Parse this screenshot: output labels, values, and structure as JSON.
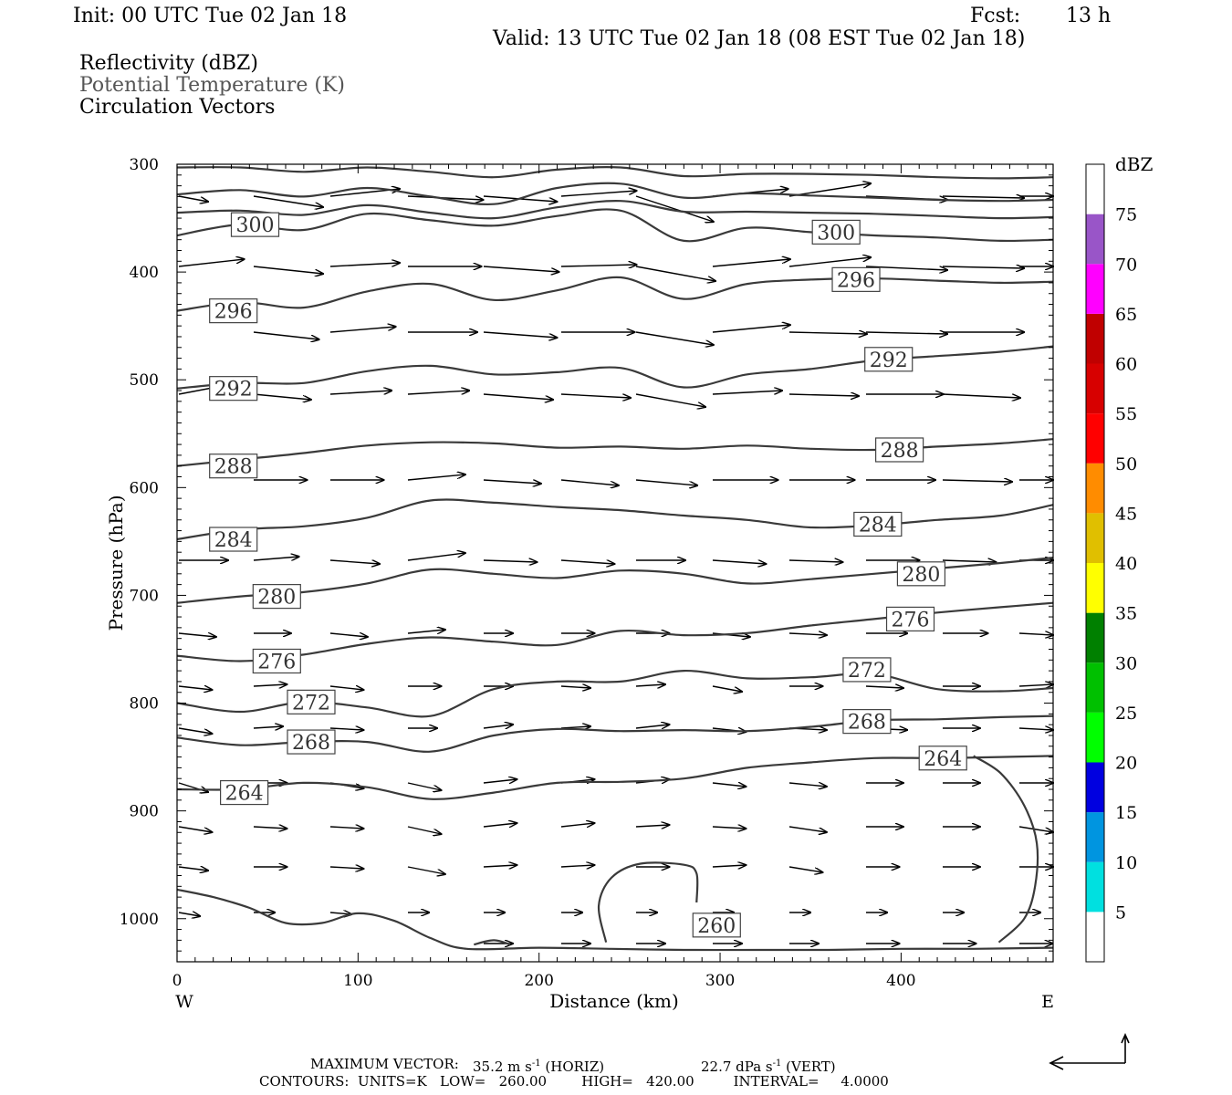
{
  "header": {
    "init": "Init: 00 UTC Tue 02 Jan 18",
    "fcst_label": "Fcst:",
    "fcst_value": "13 h",
    "valid": "Valid: 13 UTC Tue 02 Jan 18 (08 EST Tue 02 Jan 18)",
    "field1": "Reflectivity (dBZ)",
    "field2": "Potential Temperature (K)",
    "field3": "Circulation Vectors"
  },
  "footer": {
    "max_vector_label": "MAXIMUM VECTOR:",
    "max_vector_horiz": "35.2 m s",
    "horiz_sup": "-1",
    "horiz_tag": "(HORIZ)",
    "max_vector_vert": "22.7 dPa s",
    "vert_sup": "-1",
    "vert_tag": "(VERT)",
    "contours": "CONTOURS:  UNITS=K   LOW=   260.00        HIGH=   420.00         INTERVAL=     4.0000"
  },
  "chart_data": {
    "type": "line",
    "title": "",
    "xlabel": "Distance (km)",
    "ylabel": "Pressure (hPa)",
    "xlim": [
      0,
      484
    ],
    "ylim": [
      1040,
      300
    ],
    "x_ticks": [
      0,
      100,
      200,
      300,
      400
    ],
    "y_ticks": [
      300,
      400,
      500,
      600,
      700,
      800,
      900,
      1000
    ],
    "x_end_labels": [
      "W",
      "E"
    ],
    "colorbar": {
      "title": "dBZ",
      "ticks": [
        5,
        10,
        15,
        20,
        25,
        30,
        35,
        40,
        45,
        50,
        55,
        60,
        65,
        70,
        75
      ],
      "colors": [
        "#ffffff",
        "#00e0e0",
        "#0095e0",
        "#0000e0",
        "#00ff00",
        "#00c000",
        "#008000",
        "#ffff00",
        "#e0bf00",
        "#ff8c00",
        "#ff0000",
        "#d70000",
        "#c00000",
        "#ff00ff",
        "#9955c8",
        "#ffffff"
      ]
    },
    "contour_labels": [
      {
        "value": "300",
        "x": 30,
        "p": 356
      },
      {
        "value": "300",
        "x": 351,
        "p": 363
      },
      {
        "value": "296",
        "x": 18,
        "p": 436
      },
      {
        "value": "296",
        "x": 362,
        "p": 407
      },
      {
        "value": "292",
        "x": 18,
        "p": 508
      },
      {
        "value": "292",
        "x": 380,
        "p": 481
      },
      {
        "value": "288",
        "x": 18,
        "p": 580
      },
      {
        "value": "288",
        "x": 386,
        "p": 565
      },
      {
        "value": "284",
        "x": 18,
        "p": 648
      },
      {
        "value": "284",
        "x": 374,
        "p": 634
      },
      {
        "value": "280",
        "x": 42,
        "p": 701
      },
      {
        "value": "280",
        "x": 398,
        "p": 680
      },
      {
        "value": "276",
        "x": 42,
        "p": 761
      },
      {
        "value": "276",
        "x": 392,
        "p": 722
      },
      {
        "value": "272",
        "x": 61,
        "p": 799
      },
      {
        "value": "272",
        "x": 368,
        "p": 769
      },
      {
        "value": "268",
        "x": 61,
        "p": 836
      },
      {
        "value": "268",
        "x": 368,
        "p": 817
      },
      {
        "value": "264",
        "x": 24,
        "p": 883
      },
      {
        "value": "264",
        "x": 410,
        "p": 851
      },
      {
        "value": "260",
        "x": 285,
        "p": 1006
      }
    ],
    "series": [
      {
        "name": "",
        "level": 300,
        "x": [
          0,
          35,
          70,
          105,
          140,
          175,
          210,
          245,
          280,
          315,
          350,
          385,
          420,
          455,
          484
        ],
        "p": [
          303,
          303,
          307,
          303,
          307,
          312,
          305,
          303,
          311,
          309,
          309,
          310,
          312,
          313,
          312
        ]
      },
      {
        "name": "",
        "level": 300,
        "x": [
          0,
          35,
          70,
          105,
          140,
          175,
          210,
          245,
          280,
          315,
          350,
          385,
          420,
          455,
          484
        ],
        "p": [
          328,
          324,
          330,
          322,
          330,
          337,
          322,
          318,
          331,
          327,
          329,
          331,
          333,
          334,
          333
        ]
      },
      {
        "name": "",
        "level": 300,
        "x": [
          0,
          35,
          70,
          105,
          140,
          175,
          210,
          245,
          280,
          315,
          350,
          385,
          420,
          455,
          484
        ],
        "p": [
          345,
          343,
          347,
          338,
          345,
          350,
          340,
          334,
          344,
          344,
          345,
          346,
          348,
          350,
          349
        ]
      },
      {
        "name": "",
        "level": 300,
        "x": [
          0,
          35,
          70,
          105,
          140,
          175,
          210,
          245,
          280,
          315,
          350,
          385,
          420,
          455,
          484
        ],
        "p": [
          366,
          356,
          361,
          346,
          352,
          357,
          348,
          343,
          371,
          359,
          363,
          366,
          368,
          371,
          370
        ]
      },
      {
        "name": "",
        "level": 296,
        "x": [
          0,
          35,
          70,
          105,
          140,
          175,
          210,
          245,
          280,
          315,
          350,
          385,
          420,
          455,
          484
        ],
        "p": [
          436,
          428,
          433,
          418,
          411,
          426,
          417,
          405,
          425,
          411,
          407,
          406,
          408,
          410,
          409
        ]
      },
      {
        "name": "",
        "level": 292,
        "x": [
          0,
          35,
          70,
          105,
          140,
          175,
          210,
          245,
          280,
          315,
          350,
          385,
          420,
          455,
          484
        ],
        "p": [
          508,
          503,
          503,
          492,
          487,
          495,
          493,
          489,
          507,
          495,
          490,
          482,
          478,
          474,
          469
        ]
      },
      {
        "name": "",
        "level": 288,
        "x": [
          0,
          35,
          70,
          105,
          140,
          175,
          210,
          245,
          280,
          315,
          350,
          385,
          420,
          455,
          484
        ],
        "p": [
          580,
          574,
          568,
          561,
          558,
          559,
          563,
          562,
          564,
          561,
          564,
          565,
          562,
          559,
          555
        ]
      },
      {
        "name": "",
        "level": 284,
        "x": [
          0,
          35,
          70,
          105,
          140,
          175,
          210,
          245,
          280,
          315,
          350,
          385,
          420,
          455,
          484
        ],
        "p": [
          648,
          639,
          636,
          628,
          612,
          614,
          618,
          621,
          626,
          630,
          637,
          635,
          630,
          626,
          616
        ]
      },
      {
        "name": "",
        "level": 280,
        "x": [
          0,
          35,
          70,
          105,
          140,
          175,
          210,
          245,
          280,
          315,
          350,
          385,
          420,
          455,
          484
        ],
        "p": [
          707,
          701,
          697,
          689,
          676,
          680,
          684,
          677,
          680,
          689,
          685,
          680,
          675,
          670,
          665
        ]
      },
      {
        "name": "",
        "level": 276,
        "x": [
          0,
          35,
          70,
          105,
          140,
          175,
          210,
          245,
          280,
          315,
          350,
          385,
          420,
          455,
          484
        ],
        "p": [
          756,
          761,
          755,
          745,
          739,
          743,
          746,
          733,
          737,
          735,
          728,
          722,
          716,
          711,
          707
        ]
      },
      {
        "name": "",
        "level": 272,
        "x": [
          0,
          35,
          70,
          105,
          140,
          175,
          210,
          245,
          280,
          315,
          350,
          385,
          420,
          455,
          484
        ],
        "p": [
          800,
          808,
          799,
          804,
          812,
          787,
          780,
          780,
          770,
          777,
          776,
          773,
          787,
          789,
          786
        ]
      },
      {
        "name": "",
        "level": 268,
        "x": [
          0,
          35,
          70,
          105,
          140,
          175,
          210,
          245,
          280,
          315,
          350,
          385,
          420,
          455,
          484
        ],
        "p": [
          832,
          839,
          836,
          836,
          845,
          830,
          824,
          826,
          825,
          826,
          822,
          816,
          815,
          813,
          812
        ]
      },
      {
        "name": "",
        "level": 264,
        "x": [
          0,
          35,
          70,
          105,
          140,
          175,
          210,
          245,
          280,
          315,
          350,
          385,
          420,
          455,
          484
        ],
        "p": [
          880,
          880,
          874,
          878,
          889,
          883,
          874,
          873,
          870,
          860,
          855,
          851,
          851,
          850,
          849
        ]
      },
      {
        "name": "",
        "level": 264,
        "x": [
          440,
          455,
          468,
          475,
          474,
          468,
          454
        ],
        "p": [
          849,
          865,
          895,
          930,
          970,
          1000,
          1022
        ]
      },
      {
        "name": "",
        "level": 260,
        "x": [
          0,
          20,
          40,
          60,
          80,
          100,
          120,
          140,
          160,
          200,
          240,
          280,
          320,
          360,
          400,
          440,
          484
        ],
        "p": [
          973,
          980,
          990,
          1004,
          1004,
          995,
          1002,
          1018,
          1028,
          1027,
          1028,
          1029,
          1029,
          1029,
          1028,
          1028,
          1027
        ]
      },
      {
        "name": "",
        "level": 260,
        "x": [
          237,
          233,
          240,
          256,
          280,
          287,
          287
        ],
        "p": [
          1022,
          988,
          962,
          949,
          950,
          958,
          985
        ]
      },
      {
        "name": "",
        "level": 260,
        "x": [
          164,
          175,
          184
        ],
        "p": [
          1024,
          1020,
          1024
        ]
      }
    ]
  }
}
